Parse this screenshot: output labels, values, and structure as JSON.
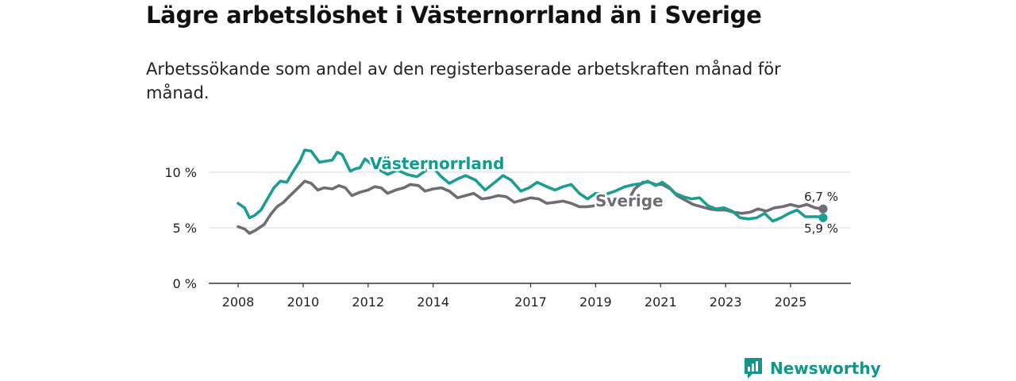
{
  "title": "Lägre arbetslöshet i Västernorrland än i Sverige",
  "subtitle": "Arbetssökande som andel av den registerbaserade arbetskraften månad för månad.",
  "brand": "Newsworthy",
  "colors": {
    "vasternorrland": "#1a9e92",
    "sverige": "#6f6c73",
    "grid": "#d9d9d9",
    "axis": "#333333"
  },
  "chart_data": {
    "type": "line",
    "title": "Lägre arbetslöshet i Västernorrland än i Sverige",
    "xlabel": "",
    "ylabel": "",
    "ylim": [
      0,
      10
    ],
    "xlim": [
      2008.0,
      2026.0
    ],
    "yticks": [
      0,
      5,
      10
    ],
    "ytick_labels": [
      "0 %",
      "5 %",
      "10 %"
    ],
    "xticks": [
      2008,
      2010,
      2012,
      2014,
      2017,
      2019,
      2021,
      2023,
      2025
    ],
    "xtick_labels": [
      "2008",
      "2010",
      "2012",
      "2014",
      "2017",
      "2019",
      "2021",
      "2023",
      "2025"
    ],
    "grid": true,
    "series": [
      {
        "name": "Västernorrland",
        "label": "Västernorrland",
        "end_label": "5,9 %",
        "points": [
          [
            2008.0,
            7.2
          ],
          [
            2008.2,
            6.8
          ],
          [
            2008.35,
            5.9
          ],
          [
            2008.5,
            6.1
          ],
          [
            2008.7,
            6.6
          ],
          [
            2008.9,
            7.6
          ],
          [
            2009.1,
            8.6
          ],
          [
            2009.3,
            9.2
          ],
          [
            2009.5,
            9.1
          ],
          [
            2009.7,
            10.1
          ],
          [
            2009.9,
            11.0
          ],
          [
            2010.05,
            12.0
          ],
          [
            2010.25,
            11.9
          ],
          [
            2010.5,
            10.9
          ],
          [
            2010.7,
            11.0
          ],
          [
            2010.9,
            11.1
          ],
          [
            2011.05,
            11.8
          ],
          [
            2011.2,
            11.6
          ],
          [
            2011.45,
            10.1
          ],
          [
            2011.6,
            10.3
          ],
          [
            2011.75,
            10.4
          ],
          [
            2011.9,
            11.2
          ],
          [
            2012.3,
            10.3
          ],
          [
            2012.6,
            9.8
          ],
          [
            2012.9,
            10.2
          ],
          [
            2013.2,
            9.8
          ],
          [
            2013.5,
            9.6
          ],
          [
            2013.8,
            10.2
          ],
          [
            2014.0,
            10.4
          ],
          [
            2014.25,
            9.6
          ],
          [
            2014.5,
            9.0
          ],
          [
            2014.75,
            9.4
          ],
          [
            2015.0,
            9.7
          ],
          [
            2015.3,
            9.3
          ],
          [
            2015.6,
            8.4
          ],
          [
            2015.9,
            9.1
          ],
          [
            2016.15,
            9.7
          ],
          [
            2016.4,
            9.3
          ],
          [
            2016.7,
            8.3
          ],
          [
            2016.95,
            8.6
          ],
          [
            2017.2,
            9.1
          ],
          [
            2017.5,
            8.7
          ],
          [
            2017.75,
            8.4
          ],
          [
            2018.0,
            8.7
          ],
          [
            2018.25,
            8.9
          ],
          [
            2018.5,
            8.1
          ],
          [
            2018.75,
            7.6
          ],
          [
            2019.0,
            8.1
          ],
          [
            2019.3,
            8.0
          ],
          [
            2019.6,
            8.3
          ],
          [
            2019.9,
            8.7
          ],
          [
            2020.2,
            8.9
          ],
          [
            2020.45,
            9.0
          ],
          [
            2020.6,
            9.2
          ],
          [
            2020.85,
            8.8
          ],
          [
            2021.05,
            9.1
          ],
          [
            2021.25,
            8.7
          ],
          [
            2021.45,
            8.1
          ],
          [
            2021.7,
            7.8
          ],
          [
            2021.95,
            7.6
          ],
          [
            2022.2,
            7.7
          ],
          [
            2022.45,
            7.0
          ],
          [
            2022.7,
            6.7
          ],
          [
            2022.95,
            6.8
          ],
          [
            2023.2,
            6.5
          ],
          [
            2023.45,
            5.9
          ],
          [
            2023.7,
            5.8
          ],
          [
            2023.95,
            5.9
          ],
          [
            2024.2,
            6.3
          ],
          [
            2024.45,
            5.6
          ],
          [
            2024.7,
            5.9
          ],
          [
            2024.95,
            6.3
          ],
          [
            2025.2,
            6.6
          ],
          [
            2025.45,
            6.0
          ],
          [
            2025.7,
            6.0
          ],
          [
            2025.9,
            6.0
          ],
          [
            2026.0,
            5.9
          ]
        ]
      },
      {
        "name": "Sverige",
        "label": "Sverige",
        "end_label": "6,7 %",
        "points": [
          [
            2008.0,
            5.1
          ],
          [
            2008.2,
            4.9
          ],
          [
            2008.35,
            4.5
          ],
          [
            2008.55,
            4.8
          ],
          [
            2008.8,
            5.3
          ],
          [
            2009.0,
            6.2
          ],
          [
            2009.2,
            6.9
          ],
          [
            2009.4,
            7.3
          ],
          [
            2009.6,
            7.9
          ],
          [
            2009.85,
            8.6
          ],
          [
            2010.05,
            9.2
          ],
          [
            2010.25,
            9.0
          ],
          [
            2010.45,
            8.4
          ],
          [
            2010.65,
            8.6
          ],
          [
            2010.9,
            8.5
          ],
          [
            2011.1,
            8.8
          ],
          [
            2011.3,
            8.6
          ],
          [
            2011.5,
            7.9
          ],
          [
            2011.75,
            8.2
          ],
          [
            2012.0,
            8.4
          ],
          [
            2012.2,
            8.7
          ],
          [
            2012.4,
            8.6
          ],
          [
            2012.6,
            8.1
          ],
          [
            2012.85,
            8.4
          ],
          [
            2013.1,
            8.6
          ],
          [
            2013.3,
            8.9
          ],
          [
            2013.55,
            8.8
          ],
          [
            2013.75,
            8.3
          ],
          [
            2014.0,
            8.5
          ],
          [
            2014.25,
            8.6
          ],
          [
            2014.5,
            8.3
          ],
          [
            2014.75,
            7.7
          ],
          [
            2015.0,
            7.9
          ],
          [
            2015.25,
            8.1
          ],
          [
            2015.5,
            7.6
          ],
          [
            2015.75,
            7.7
          ],
          [
            2016.0,
            7.9
          ],
          [
            2016.25,
            7.8
          ],
          [
            2016.5,
            7.3
          ],
          [
            2016.75,
            7.5
          ],
          [
            2017.0,
            7.7
          ],
          [
            2017.25,
            7.6
          ],
          [
            2017.5,
            7.2
          ],
          [
            2017.75,
            7.3
          ],
          [
            2018.0,
            7.4
          ],
          [
            2018.25,
            7.2
          ],
          [
            2018.5,
            6.9
          ],
          [
            2018.75,
            6.9
          ],
          [
            2019.0,
            7.0
          ],
          [
            2020.0,
            7.4
          ],
          [
            2020.2,
            8.5
          ],
          [
            2020.45,
            9.1
          ],
          [
            2020.65,
            9.1
          ],
          [
            2020.85,
            8.9
          ],
          [
            2021.05,
            8.9
          ],
          [
            2021.3,
            8.5
          ],
          [
            2021.5,
            7.9
          ],
          [
            2021.75,
            7.5
          ],
          [
            2022.0,
            7.1
          ],
          [
            2022.25,
            6.9
          ],
          [
            2022.5,
            6.7
          ],
          [
            2022.75,
            6.6
          ],
          [
            2023.0,
            6.6
          ],
          [
            2023.25,
            6.4
          ],
          [
            2023.5,
            6.3
          ],
          [
            2023.75,
            6.4
          ],
          [
            2024.0,
            6.7
          ],
          [
            2024.25,
            6.5
          ],
          [
            2024.5,
            6.8
          ],
          [
            2024.75,
            6.9
          ],
          [
            2025.0,
            7.1
          ],
          [
            2025.25,
            6.9
          ],
          [
            2025.5,
            7.1
          ],
          [
            2025.75,
            6.8
          ],
          [
            2026.0,
            6.7
          ]
        ]
      }
    ]
  }
}
